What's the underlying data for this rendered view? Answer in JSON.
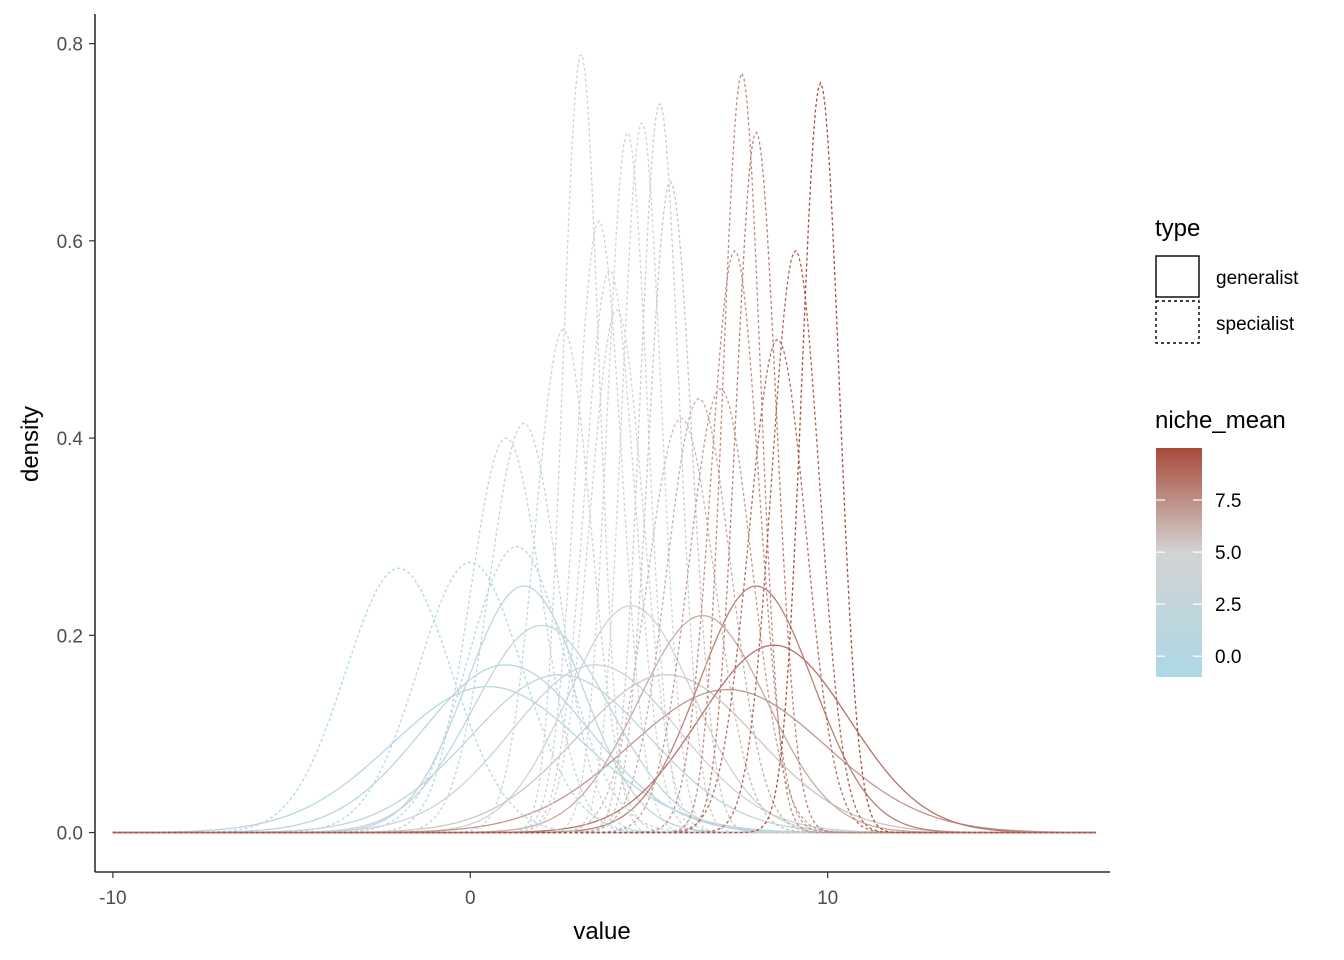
{
  "chart_data": {
    "type": "line",
    "chart_kind": "density curves",
    "xlabel": "value",
    "ylabel": "density",
    "xlim": [
      -10.5,
      17.9
    ],
    "ylim": [
      -0.04,
      0.83
    ],
    "x_ticks": [
      -10,
      0,
      10
    ],
    "x_tick_labels": [
      "-10",
      "0",
      "10"
    ],
    "y_ticks": [
      0.0,
      0.2,
      0.4,
      0.6,
      0.8
    ],
    "y_tick_labels": [
      "0.0",
      "0.2",
      "0.4",
      "0.6",
      "0.8"
    ],
    "grid": false,
    "legend_position": "right",
    "legends": {
      "type": {
        "title": "type",
        "entries": [
          {
            "label": "generalist",
            "linetype": "solid"
          },
          {
            "label": "specialist",
            "linetype": "dashed"
          }
        ]
      },
      "niche_mean": {
        "title": "niche_mean",
        "low": -1.0,
        "mid": 5.0,
        "high": 10.0,
        "low_color": "#add8e6",
        "mid_color": "#d3d3d3",
        "high_color": "#a84a3a",
        "breaks": [
          7.5,
          5.0,
          2.5,
          0.0
        ],
        "break_labels": [
          "7.5",
          "5.0",
          "2.5",
          "0.0"
        ]
      }
    },
    "curve_family": "normal density, density = height at mean, spread = sd",
    "series": [
      {
        "type": "specialist",
        "niche_mean": -2.0,
        "peak_x": -2.0,
        "sd": 1.49,
        "peak_density": 0.268
      },
      {
        "type": "specialist",
        "niche_mean": 0.0,
        "peak_x": 0.0,
        "sd": 1.46,
        "peak_density": 0.274
      },
      {
        "type": "specialist",
        "niche_mean": 1.0,
        "peak_x": 1.0,
        "sd": 1.0,
        "peak_density": 0.4
      },
      {
        "type": "specialist",
        "niche_mean": 1.5,
        "peak_x": 1.5,
        "sd": 0.97,
        "peak_density": 0.415
      },
      {
        "type": "specialist",
        "niche_mean": 1.3,
        "peak_x": 1.3,
        "sd": 1.37,
        "peak_density": 0.29
      },
      {
        "type": "specialist",
        "niche_mean": 2.6,
        "peak_x": 2.6,
        "sd": 0.78,
        "peak_density": 0.51
      },
      {
        "type": "specialist",
        "niche_mean": 3.1,
        "peak_x": 3.1,
        "sd": 0.5,
        "peak_density": 0.79
      },
      {
        "type": "specialist",
        "niche_mean": 3.6,
        "peak_x": 3.6,
        "sd": 0.64,
        "peak_density": 0.62
      },
      {
        "type": "specialist",
        "niche_mean": 3.9,
        "peak_x": 3.9,
        "sd": 0.7,
        "peak_density": 0.57
      },
      {
        "type": "specialist",
        "niche_mean": 4.1,
        "peak_x": 4.1,
        "sd": 0.75,
        "peak_density": 0.53
      },
      {
        "type": "specialist",
        "niche_mean": 4.4,
        "peak_x": 4.4,
        "sd": 0.56,
        "peak_density": 0.71
      },
      {
        "type": "specialist",
        "niche_mean": 4.8,
        "peak_x": 4.8,
        "sd": 0.55,
        "peak_density": 0.72
      },
      {
        "type": "specialist",
        "niche_mean": 5.3,
        "peak_x": 5.3,
        "sd": 0.54,
        "peak_density": 0.74
      },
      {
        "type": "specialist",
        "niche_mean": 5.6,
        "peak_x": 5.6,
        "sd": 0.6,
        "peak_density": 0.66
      },
      {
        "type": "specialist",
        "niche_mean": 5.9,
        "peak_x": 5.9,
        "sd": 0.95,
        "peak_density": 0.42
      },
      {
        "type": "specialist",
        "niche_mean": 6.4,
        "peak_x": 6.4,
        "sd": 0.9,
        "peak_density": 0.44
      },
      {
        "type": "specialist",
        "niche_mean": 7.0,
        "peak_x": 7.0,
        "sd": 0.88,
        "peak_density": 0.45
      },
      {
        "type": "specialist",
        "niche_mean": 7.4,
        "peak_x": 7.4,
        "sd": 0.67,
        "peak_density": 0.59
      },
      {
        "type": "specialist",
        "niche_mean": 7.6,
        "peak_x": 7.6,
        "sd": 0.52,
        "peak_density": 0.77
      },
      {
        "type": "specialist",
        "niche_mean": 8.0,
        "peak_x": 8.0,
        "sd": 0.56,
        "peak_density": 0.71
      },
      {
        "type": "specialist",
        "niche_mean": 8.6,
        "peak_x": 8.6,
        "sd": 0.8,
        "peak_density": 0.5
      },
      {
        "type": "specialist",
        "niche_mean": 9.1,
        "peak_x": 9.1,
        "sd": 0.67,
        "peak_density": 0.59
      },
      {
        "type": "specialist",
        "niche_mean": 9.8,
        "peak_x": 9.8,
        "sd": 0.52,
        "peak_density": 0.76
      },
      {
        "type": "generalist",
        "niche_mean": 0.5,
        "peak_x": 0.5,
        "sd": 2.7,
        "peak_density": 0.148
      },
      {
        "type": "generalist",
        "niche_mean": 1.0,
        "peak_x": 1.0,
        "sd": 2.35,
        "peak_density": 0.17
      },
      {
        "type": "generalist",
        "niche_mean": 1.5,
        "peak_x": 1.5,
        "sd": 1.6,
        "peak_density": 0.25
      },
      {
        "type": "generalist",
        "niche_mean": 2.0,
        "peak_x": 2.0,
        "sd": 1.9,
        "peak_density": 0.21
      },
      {
        "type": "generalist",
        "niche_mean": 2.5,
        "peak_x": 2.5,
        "sd": 2.5,
        "peak_density": 0.16
      },
      {
        "type": "generalist",
        "niche_mean": 3.5,
        "peak_x": 3.5,
        "sd": 2.35,
        "peak_density": 0.17
      },
      {
        "type": "generalist",
        "niche_mean": 4.5,
        "peak_x": 4.5,
        "sd": 1.75,
        "peak_density": 0.23
      },
      {
        "type": "generalist",
        "niche_mean": 5.5,
        "peak_x": 5.5,
        "sd": 2.5,
        "peak_density": 0.16
      },
      {
        "type": "generalist",
        "niche_mean": 6.5,
        "peak_x": 6.5,
        "sd": 1.8,
        "peak_density": 0.22
      },
      {
        "type": "generalist",
        "niche_mean": 7.2,
        "peak_x": 7.2,
        "sd": 2.75,
        "peak_density": 0.145
      },
      {
        "type": "generalist",
        "niche_mean": 8.0,
        "peak_x": 8.0,
        "sd": 1.6,
        "peak_density": 0.25
      },
      {
        "type": "generalist",
        "niche_mean": 8.5,
        "peak_x": 8.5,
        "sd": 2.1,
        "peak_density": 0.19
      }
    ]
  }
}
